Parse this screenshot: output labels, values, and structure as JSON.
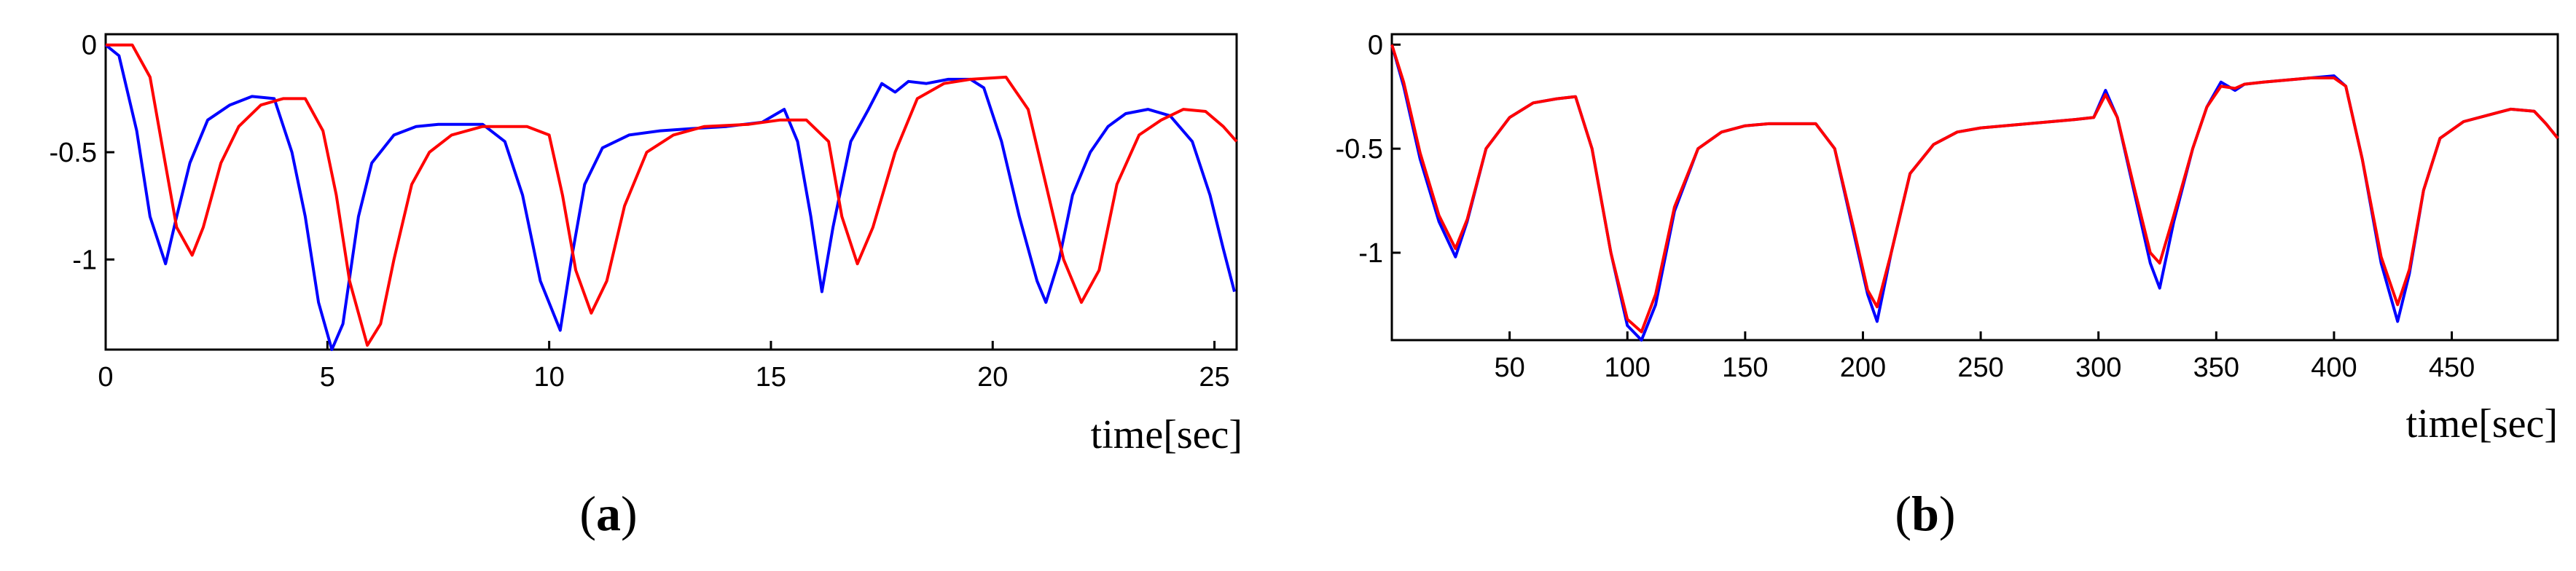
{
  "chart_data": [
    {
      "id": "a",
      "type": "line",
      "subfigure_label": "a",
      "xlabel": "time[sec]",
      "ylabel": "",
      "xlim": [
        0,
        25.5
      ],
      "ylim": [
        -1.42,
        0.05
      ],
      "xticks": [
        0,
        5,
        10,
        15,
        20,
        25
      ],
      "yticks": [
        0,
        -0.5,
        -1
      ],
      "ytick_labels": [
        "0",
        "-0.5",
        "-1"
      ],
      "grid": false,
      "series": [
        {
          "color": "#0000ff",
          "points": [
            [
              0,
              0
            ],
            [
              0.3,
              -0.05
            ],
            [
              0.7,
              -0.4
            ],
            [
              1.0,
              -0.8
            ],
            [
              1.35,
              -1.02
            ],
            [
              1.6,
              -0.8
            ],
            [
              1.9,
              -0.55
            ],
            [
              2.3,
              -0.35
            ],
            [
              2.8,
              -0.28
            ],
            [
              3.3,
              -0.24
            ],
            [
              3.8,
              -0.25
            ],
            [
              4.2,
              -0.5
            ],
            [
              4.5,
              -0.8
            ],
            [
              4.8,
              -1.2
            ],
            [
              5.1,
              -1.42
            ],
            [
              5.35,
              -1.3
            ],
            [
              5.7,
              -0.8
            ],
            [
              6.0,
              -0.55
            ],
            [
              6.5,
              -0.42
            ],
            [
              7.0,
              -0.38
            ],
            [
              7.5,
              -0.37
            ],
            [
              8.0,
              -0.37
            ],
            [
              8.5,
              -0.37
            ],
            [
              9.0,
              -0.45
            ],
            [
              9.4,
              -0.7
            ],
            [
              9.8,
              -1.1
            ],
            [
              10.25,
              -1.33
            ],
            [
              10.5,
              -1.0
            ],
            [
              10.8,
              -0.65
            ],
            [
              11.2,
              -0.48
            ],
            [
              11.8,
              -0.42
            ],
            [
              12.5,
              -0.4
            ],
            [
              13.2,
              -0.39
            ],
            [
              14.0,
              -0.38
            ],
            [
              14.8,
              -0.36
            ],
            [
              15.3,
              -0.3
            ],
            [
              15.6,
              -0.45
            ],
            [
              15.9,
              -0.8
            ],
            [
              16.15,
              -1.15
            ],
            [
              16.4,
              -0.85
            ],
            [
              16.8,
              -0.45
            ],
            [
              17.2,
              -0.3
            ],
            [
              17.5,
              -0.18
            ],
            [
              17.8,
              -0.22
            ],
            [
              18.1,
              -0.17
            ],
            [
              18.5,
              -0.18
            ],
            [
              19.0,
              -0.16
            ],
            [
              19.5,
              -0.16
            ],
            [
              19.8,
              -0.2
            ],
            [
              20.2,
              -0.45
            ],
            [
              20.6,
              -0.8
            ],
            [
              21.0,
              -1.1
            ],
            [
              21.2,
              -1.2
            ],
            [
              21.5,
              -1.0
            ],
            [
              21.8,
              -0.7
            ],
            [
              22.2,
              -0.5
            ],
            [
              22.6,
              -0.38
            ],
            [
              23.0,
              -0.32
            ],
            [
              23.5,
              -0.3
            ],
            [
              24.0,
              -0.33
            ],
            [
              24.5,
              -0.45
            ],
            [
              24.9,
              -0.7
            ],
            [
              25.2,
              -0.95
            ],
            [
              25.45,
              -1.15
            ]
          ]
        },
        {
          "color": "#ff0000",
          "points": [
            [
              0,
              0
            ],
            [
              0.6,
              0
            ],
            [
              1.0,
              -0.15
            ],
            [
              1.3,
              -0.5
            ],
            [
              1.6,
              -0.85
            ],
            [
              1.95,
              -0.98
            ],
            [
              2.2,
              -0.85
            ],
            [
              2.6,
              -0.55
            ],
            [
              3.0,
              -0.38
            ],
            [
              3.5,
              -0.28
            ],
            [
              4.0,
              -0.25
            ],
            [
              4.5,
              -0.25
            ],
            [
              4.9,
              -0.4
            ],
            [
              5.2,
              -0.7
            ],
            [
              5.5,
              -1.1
            ],
            [
              5.9,
              -1.4
            ],
            [
              6.2,
              -1.3
            ],
            [
              6.5,
              -1.0
            ],
            [
              6.9,
              -0.65
            ],
            [
              7.3,
              -0.5
            ],
            [
              7.8,
              -0.42
            ],
            [
              8.5,
              -0.38
            ],
            [
              9.5,
              -0.38
            ],
            [
              10.0,
              -0.42
            ],
            [
              10.3,
              -0.7
            ],
            [
              10.6,
              -1.05
            ],
            [
              10.95,
              -1.25
            ],
            [
              11.3,
              -1.1
            ],
            [
              11.7,
              -0.75
            ],
            [
              12.2,
              -0.5
            ],
            [
              12.8,
              -0.42
            ],
            [
              13.5,
              -0.38
            ],
            [
              14.5,
              -0.37
            ],
            [
              15.2,
              -0.35
            ],
            [
              15.8,
              -0.35
            ],
            [
              16.3,
              -0.45
            ],
            [
              16.6,
              -0.8
            ],
            [
              16.95,
              -1.02
            ],
            [
              17.3,
              -0.85
            ],
            [
              17.8,
              -0.5
            ],
            [
              18.3,
              -0.25
            ],
            [
              18.9,
              -0.18
            ],
            [
              19.5,
              -0.16
            ],
            [
              20.3,
              -0.15
            ],
            [
              20.8,
              -0.3
            ],
            [
              21.2,
              -0.65
            ],
            [
              21.6,
              -1.0
            ],
            [
              22.0,
              -1.2
            ],
            [
              22.4,
              -1.05
            ],
            [
              22.8,
              -0.65
            ],
            [
              23.3,
              -0.42
            ],
            [
              23.8,
              -0.35
            ],
            [
              24.3,
              -0.3
            ],
            [
              24.8,
              -0.31
            ],
            [
              25.2,
              -0.38
            ],
            [
              25.5,
              -0.45
            ]
          ]
        }
      ]
    },
    {
      "id": "b",
      "type": "line",
      "subfigure_label": "b",
      "xlabel": "time[sec]",
      "ylabel": "",
      "xlim": [
        0,
        495
      ],
      "ylim": [
        -1.42,
        0.05
      ],
      "xticks": [
        50,
        100,
        150,
        200,
        250,
        300,
        350,
        400,
        450
      ],
      "yticks": [
        0,
        -0.5,
        -1
      ],
      "ytick_labels": [
        "0",
        "-0.5",
        "-1"
      ],
      "grid": false,
      "series": [
        {
          "color": "#0000ff",
          "points": [
            [
              0,
              0
            ],
            [
              5,
              -0.2
            ],
            [
              12,
              -0.55
            ],
            [
              20,
              -0.85
            ],
            [
              27,
              -1.02
            ],
            [
              32,
              -0.85
            ],
            [
              40,
              -0.5
            ],
            [
              50,
              -0.35
            ],
            [
              60,
              -0.28
            ],
            [
              70,
              -0.26
            ],
            [
              78,
              -0.25
            ],
            [
              85,
              -0.5
            ],
            [
              93,
              -1.0
            ],
            [
              100,
              -1.35
            ],
            [
              106,
              -1.42
            ],
            [
              112,
              -1.25
            ],
            [
              120,
              -0.8
            ],
            [
              130,
              -0.5
            ],
            [
              140,
              -0.42
            ],
            [
              150,
              -0.39
            ],
            [
              160,
              -0.38
            ],
            [
              170,
              -0.38
            ],
            [
              180,
              -0.38
            ],
            [
              188,
              -0.5
            ],
            [
              196,
              -0.9
            ],
            [
              202,
              -1.2
            ],
            [
              206,
              -1.33
            ],
            [
              212,
              -1.0
            ],
            [
              220,
              -0.62
            ],
            [
              230,
              -0.48
            ],
            [
              240,
              -0.42
            ],
            [
              250,
              -0.4
            ],
            [
              260,
              -0.39
            ],
            [
              270,
              -0.38
            ],
            [
              280,
              -0.37
            ],
            [
              290,
              -0.36
            ],
            [
              298,
              -0.35
            ],
            [
              303,
              -0.22
            ],
            [
              308,
              -0.35
            ],
            [
              315,
              -0.7
            ],
            [
              322,
              -1.05
            ],
            [
              326,
              -1.17
            ],
            [
              332,
              -0.85
            ],
            [
              340,
              -0.5
            ],
            [
              346,
              -0.3
            ],
            [
              352,
              -0.18
            ],
            [
              358,
              -0.22
            ],
            [
              362,
              -0.19
            ],
            [
              370,
              -0.18
            ],
            [
              380,
              -0.17
            ],
            [
              390,
              -0.16
            ],
            [
              400,
              -0.15
            ],
            [
              405,
              -0.2
            ],
            [
              412,
              -0.55
            ],
            [
              420,
              -1.05
            ],
            [
              427,
              -1.33
            ],
            [
              432,
              -1.1
            ],
            [
              438,
              -0.7
            ],
            [
              445,
              -0.45
            ],
            [
              455,
              -0.37
            ],
            [
              465,
              -0.34
            ],
            [
              475,
              -0.31
            ],
            [
              485,
              -0.32
            ],
            [
              490,
              -0.38
            ],
            [
              495,
              -0.45
            ]
          ]
        },
        {
          "color": "#ff0000",
          "points": [
            [
              0,
              0
            ],
            [
              5,
              -0.18
            ],
            [
              12,
              -0.52
            ],
            [
              20,
              -0.82
            ],
            [
              27,
              -0.98
            ],
            [
              32,
              -0.84
            ],
            [
              40,
              -0.5
            ],
            [
              50,
              -0.35
            ],
            [
              60,
              -0.28
            ],
            [
              70,
              -0.26
            ],
            [
              78,
              -0.25
            ],
            [
              85,
              -0.5
            ],
            [
              93,
              -1.0
            ],
            [
              100,
              -1.32
            ],
            [
              106,
              -1.38
            ],
            [
              112,
              -1.2
            ],
            [
              120,
              -0.78
            ],
            [
              130,
              -0.5
            ],
            [
              140,
              -0.42
            ],
            [
              150,
              -0.39
            ],
            [
              160,
              -0.38
            ],
            [
              170,
              -0.38
            ],
            [
              180,
              -0.38
            ],
            [
              188,
              -0.5
            ],
            [
              196,
              -0.88
            ],
            [
              202,
              -1.18
            ],
            [
              206,
              -1.26
            ],
            [
              212,
              -1.0
            ],
            [
              220,
              -0.62
            ],
            [
              230,
              -0.48
            ],
            [
              240,
              -0.42
            ],
            [
              250,
              -0.4
            ],
            [
              260,
              -0.39
            ],
            [
              270,
              -0.38
            ],
            [
              280,
              -0.37
            ],
            [
              290,
              -0.36
            ],
            [
              298,
              -0.35
            ],
            [
              303,
              -0.24
            ],
            [
              308,
              -0.35
            ],
            [
              315,
              -0.68
            ],
            [
              322,
              -1.0
            ],
            [
              326,
              -1.05
            ],
            [
              332,
              -0.82
            ],
            [
              340,
              -0.5
            ],
            [
              346,
              -0.3
            ],
            [
              352,
              -0.2
            ],
            [
              358,
              -0.21
            ],
            [
              362,
              -0.19
            ],
            [
              370,
              -0.18
            ],
            [
              380,
              -0.17
            ],
            [
              390,
              -0.16
            ],
            [
              400,
              -0.16
            ],
            [
              405,
              -0.2
            ],
            [
              412,
              -0.55
            ],
            [
              420,
              -1.02
            ],
            [
              427,
              -1.25
            ],
            [
              432,
              -1.08
            ],
            [
              438,
              -0.7
            ],
            [
              445,
              -0.45
            ],
            [
              455,
              -0.37
            ],
            [
              465,
              -0.34
            ],
            [
              475,
              -0.31
            ],
            [
              485,
              -0.32
            ],
            [
              490,
              -0.38
            ],
            [
              495,
              -0.45
            ]
          ]
        }
      ]
    }
  ]
}
